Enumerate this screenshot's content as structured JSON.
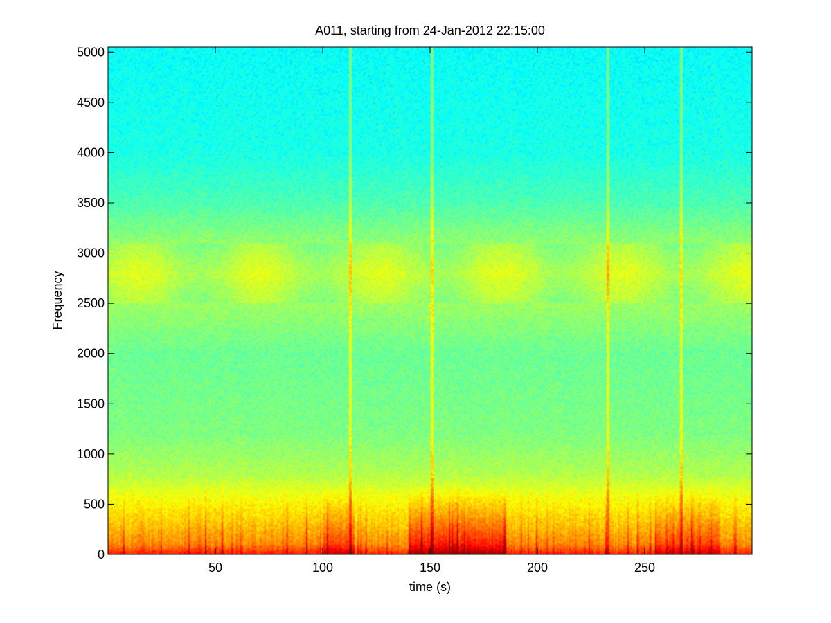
{
  "chart_data": {
    "type": "heatmap",
    "title": "A011, starting from 24-Jan-2012 22:15:00",
    "xlabel": "time (s)",
    "ylabel": "Frequency",
    "xlim": [
      0,
      300
    ],
    "ylim": [
      0,
      5050
    ],
    "xticks": [
      50,
      100,
      150,
      200,
      250
    ],
    "xtick_labels": [
      "50",
      "100",
      "150",
      "200",
      "250"
    ],
    "yticks": [
      0,
      500,
      1000,
      1500,
      2000,
      2500,
      3000,
      3500,
      4000,
      4500,
      5000
    ],
    "ytick_labels": [
      "0",
      "500",
      "1000",
      "1500",
      "2000",
      "2500",
      "3000",
      "3500",
      "4000",
      "4500",
      "5000"
    ],
    "colormap": "jet",
    "grid": false,
    "intensity_profile": [
      {
        "frequency": 0,
        "level": 0.85
      },
      {
        "frequency": 100,
        "level": 0.74
      },
      {
        "frequency": 300,
        "level": 0.68
      },
      {
        "frequency": 550,
        "level": 0.62
      },
      {
        "frequency": 800,
        "level": 0.55
      },
      {
        "frequency": 1200,
        "level": 0.5
      },
      {
        "frequency": 2000,
        "level": 0.48
      },
      {
        "frequency": 2500,
        "level": 0.53
      },
      {
        "frequency": 2800,
        "level": 0.57
      },
      {
        "frequency": 3100,
        "level": 0.52
      },
      {
        "frequency": 3500,
        "level": 0.45
      },
      {
        "frequency": 4000,
        "level": 0.4
      },
      {
        "frequency": 5050,
        "level": 0.38
      }
    ],
    "broadband_events_s": [
      113,
      151,
      233,
      267
    ]
  },
  "colors": {
    "axes": "#000000",
    "background": "#ffffff"
  }
}
